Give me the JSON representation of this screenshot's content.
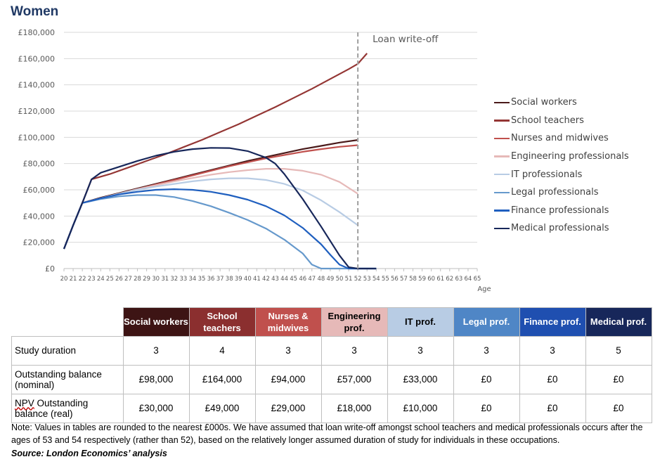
{
  "title": "Women",
  "chart_data": {
    "type": "line",
    "title": "Women",
    "xlabel": "Age",
    "ylabel": "",
    "x": [
      20,
      21,
      22,
      23,
      24,
      25,
      26,
      27,
      28,
      29,
      30,
      31,
      32,
      33,
      34,
      35,
      36,
      37,
      38,
      39,
      40,
      41,
      42,
      43,
      44,
      45,
      46,
      47,
      48,
      49,
      50,
      51,
      52,
      53,
      54,
      55,
      56,
      57,
      58,
      59,
      60,
      61,
      62,
      63,
      64,
      65
    ],
    "xlim": [
      20,
      65
    ],
    "ylim": [
      0,
      180000
    ],
    "ytick_values": [
      0,
      20000,
      40000,
      60000,
      80000,
      100000,
      120000,
      140000,
      160000,
      180000
    ],
    "ytick_labels": [
      "£0",
      "£20,000",
      "£40,000",
      "£60,000",
      "£80,000",
      "£100,000",
      "£120,000",
      "£140,000",
      "£160,000",
      "£180,000"
    ],
    "annotation": {
      "text": "Loan write-off",
      "x": 52
    },
    "grid": true,
    "legend_position": "right",
    "series": [
      {
        "name": "Social workers",
        "color": "#4a1a1a",
        "points": [
          [
            20,
            15000
          ],
          [
            21,
            33000
          ],
          [
            22,
            50000
          ],
          [
            24,
            54000
          ],
          [
            26,
            57500
          ],
          [
            28,
            61000
          ],
          [
            30,
            64500
          ],
          [
            32,
            68000
          ],
          [
            34,
            71500
          ],
          [
            36,
            75000
          ],
          [
            38,
            78500
          ],
          [
            40,
            82000
          ],
          [
            42,
            85000
          ],
          [
            44,
            88000
          ],
          [
            46,
            91000
          ],
          [
            48,
            93500
          ],
          [
            50,
            96000
          ],
          [
            52,
            98000
          ]
        ]
      },
      {
        "name": "School teachers",
        "color": "#943634",
        "points": [
          [
            20,
            15000
          ],
          [
            21,
            33000
          ],
          [
            22,
            50000
          ],
          [
            23,
            68000
          ],
          [
            25,
            72000
          ],
          [
            27,
            77000
          ],
          [
            29,
            82000
          ],
          [
            31,
            87000
          ],
          [
            33,
            92500
          ],
          [
            35,
            98000
          ],
          [
            37,
            104000
          ],
          [
            39,
            110000
          ],
          [
            41,
            116500
          ],
          [
            43,
            123000
          ],
          [
            45,
            130000
          ],
          [
            47,
            137000
          ],
          [
            49,
            144500
          ],
          [
            51,
            152000
          ],
          [
            52,
            156000
          ],
          [
            53,
            164000
          ]
        ]
      },
      {
        "name": "Nurses and midwives",
        "color": "#c0504d",
        "points": [
          [
            20,
            15000
          ],
          [
            21,
            33000
          ],
          [
            22,
            50000
          ],
          [
            24,
            53500
          ],
          [
            26,
            57000
          ],
          [
            28,
            60500
          ],
          [
            30,
            64000
          ],
          [
            32,
            67500
          ],
          [
            34,
            71000
          ],
          [
            36,
            74500
          ],
          [
            38,
            78000
          ],
          [
            40,
            81000
          ],
          [
            42,
            84000
          ],
          [
            44,
            86500
          ],
          [
            46,
            89000
          ],
          [
            48,
            91000
          ],
          [
            50,
            92800
          ],
          [
            52,
            94000
          ]
        ]
      },
      {
        "name": "Engineering professionals",
        "color": "#e6b9b8",
        "points": [
          [
            20,
            15000
          ],
          [
            21,
            33000
          ],
          [
            22,
            50000
          ],
          [
            24,
            53500
          ],
          [
            26,
            57000
          ],
          [
            28,
            60500
          ],
          [
            30,
            63500
          ],
          [
            32,
            66500
          ],
          [
            34,
            69000
          ],
          [
            36,
            71500
          ],
          [
            38,
            73500
          ],
          [
            40,
            75000
          ],
          [
            42,
            76000
          ],
          [
            44,
            76000
          ],
          [
            46,
            74500
          ],
          [
            48,
            71500
          ],
          [
            50,
            66000
          ],
          [
            52,
            57000
          ]
        ]
      },
      {
        "name": "IT professionals",
        "color": "#b8cce4",
        "points": [
          [
            20,
            15000
          ],
          [
            21,
            33000
          ],
          [
            22,
            50000
          ],
          [
            24,
            53500
          ],
          [
            26,
            57000
          ],
          [
            28,
            60000
          ],
          [
            30,
            62500
          ],
          [
            32,
            64500
          ],
          [
            34,
            66500
          ],
          [
            36,
            68000
          ],
          [
            38,
            68800
          ],
          [
            40,
            68800
          ],
          [
            42,
            67500
          ],
          [
            44,
            64500
          ],
          [
            46,
            59500
          ],
          [
            48,
            52000
          ],
          [
            50,
            43000
          ],
          [
            52,
            33000
          ]
        ]
      },
      {
        "name": "Legal professionals",
        "color": "#6699cc",
        "points": [
          [
            20,
            15000
          ],
          [
            21,
            33000
          ],
          [
            22,
            50000
          ],
          [
            24,
            53000
          ],
          [
            26,
            55000
          ],
          [
            28,
            56000
          ],
          [
            30,
            56000
          ],
          [
            32,
            54500
          ],
          [
            34,
            51500
          ],
          [
            36,
            47500
          ],
          [
            38,
            42500
          ],
          [
            40,
            37000
          ],
          [
            42,
            30500
          ],
          [
            44,
            22000
          ],
          [
            46,
            11500
          ],
          [
            47,
            3000
          ],
          [
            48,
            0
          ],
          [
            54,
            0
          ]
        ]
      },
      {
        "name": "Finance professionals",
        "color": "#1f5fbf",
        "points": [
          [
            20,
            15000
          ],
          [
            21,
            33000
          ],
          [
            22,
            50000
          ],
          [
            24,
            53500
          ],
          [
            26,
            56500
          ],
          [
            28,
            58500
          ],
          [
            30,
            60000
          ],
          [
            32,
            60500
          ],
          [
            34,
            60000
          ],
          [
            36,
            58500
          ],
          [
            38,
            56000
          ],
          [
            40,
            52500
          ],
          [
            42,
            47500
          ],
          [
            44,
            40500
          ],
          [
            46,
            31000
          ],
          [
            48,
            18500
          ],
          [
            49,
            10500
          ],
          [
            50,
            3000
          ],
          [
            51,
            0
          ],
          [
            54,
            0
          ]
        ]
      },
      {
        "name": "Medical professionals",
        "color": "#17275a",
        "points": [
          [
            20,
            15000
          ],
          [
            21,
            33000
          ],
          [
            22,
            50000
          ],
          [
            23,
            68000
          ],
          [
            24,
            73000
          ],
          [
            26,
            77500
          ],
          [
            28,
            82000
          ],
          [
            30,
            86000
          ],
          [
            32,
            89000
          ],
          [
            34,
            91000
          ],
          [
            36,
            92000
          ],
          [
            38,
            91800
          ],
          [
            40,
            89500
          ],
          [
            42,
            84500
          ],
          [
            43,
            80000
          ],
          [
            44,
            72000
          ],
          [
            46,
            53000
          ],
          [
            48,
            32000
          ],
          [
            50,
            10000
          ],
          [
            51,
            1000
          ],
          [
            52,
            0
          ],
          [
            54,
            0
          ]
        ]
      }
    ]
  },
  "table": {
    "columns": [
      {
        "label": "Social workers",
        "bg": "#3d1414",
        "fg": "#ffffff"
      },
      {
        "label": "School teachers",
        "bg": "#8b2f2f",
        "fg": "#ffffff"
      },
      {
        "label": "Nurses & midwives",
        "bg": "#c0504d",
        "fg": "#ffffff"
      },
      {
        "label": "Engineering prof.",
        "bg": "#e6b9b8",
        "fg": "#000000"
      },
      {
        "label": "IT prof.",
        "bg": "#b8cce4",
        "fg": "#000000"
      },
      {
        "label": "Legal prof.",
        "bg": "#4f86c6",
        "fg": "#ffffff"
      },
      {
        "label": "Finance prof.",
        "bg": "#1f4fb0",
        "fg": "#ffffff"
      },
      {
        "label": "Medical prof.",
        "bg": "#17275a",
        "fg": "#ffffff"
      }
    ],
    "rows": [
      {
        "label": "Study duration",
        "values": [
          "3",
          "4",
          "3",
          "3",
          "3",
          "3",
          "3",
          "5"
        ]
      },
      {
        "label_pre": "",
        "label_squiggle": "",
        "label": "Outstanding balance (nominal)",
        "values": [
          "£98,000",
          "£164,000",
          "£94,000",
          "£57,000",
          "£33,000",
          "£0",
          "£0",
          "£0"
        ]
      },
      {
        "label_squiggle": "NPV",
        "label": " Outstanding balance (real)",
        "values": [
          "£30,000",
          "£49,000",
          "£29,000",
          "£18,000",
          "£10,000",
          "£0",
          "£0",
          "£0"
        ]
      }
    ]
  },
  "note": "Note: Values in tables are rounded to the nearest £000s. We have assumed that loan write-off amongst school teachers and medical professionals occurs after the ages of 53 and 54 respectively (rather than 52), based on the relatively longer assumed duration of study for individuals in these occupations.",
  "source": "Source: London Economics’ analysis"
}
